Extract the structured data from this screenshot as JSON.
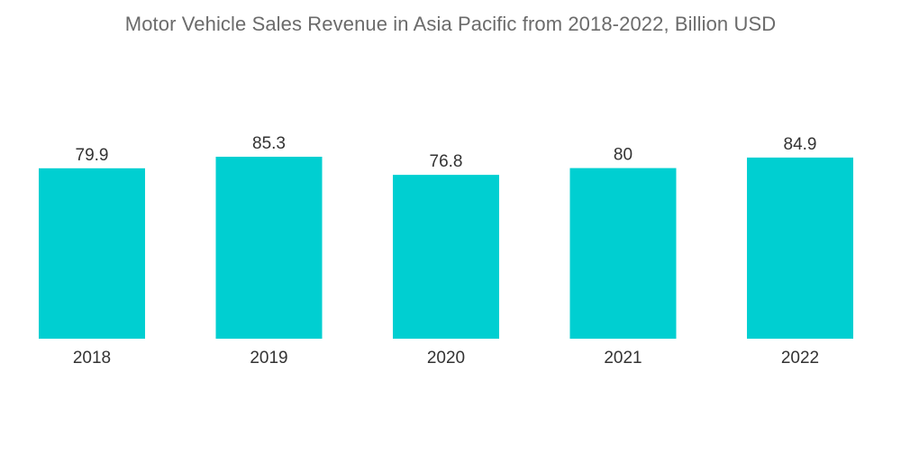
{
  "chart_data": {
    "type": "bar",
    "title": "Motor Vehicle Sales Revenue in Asia Pacific from 2018-2022, Billion USD",
    "categories": [
      "2018",
      "2019",
      "2020",
      "2021",
      "2022"
    ],
    "values": [
      79.9,
      85.3,
      76.8,
      80,
      84.9
    ],
    "value_labels": [
      "79.9",
      "85.3",
      "76.8",
      "80",
      "84.9"
    ],
    "xlabel": "",
    "ylabel": "",
    "ylim": [
      0,
      85.3
    ],
    "grid": false,
    "legend": "none",
    "bar_color": "#00cfd1"
  }
}
